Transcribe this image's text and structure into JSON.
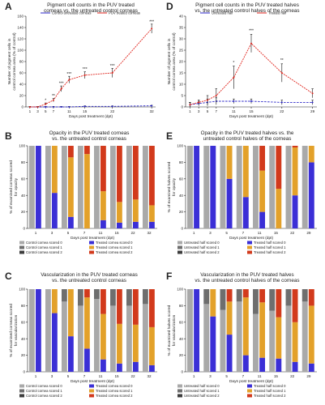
{
  "colors": {
    "red": "#e0261e",
    "blue": "#2b27c8",
    "g0": "#a9a9a9",
    "g1": "#6e6e6e",
    "g2": "#3c3c3c",
    "t0": "#3b2fd6",
    "t1": "#e3a12a",
    "t2": "#d23a1c"
  },
  "chart_data": [
    {
      "id": "A",
      "label": "A",
      "type": "line",
      "title": [
        "Pigment cell counts in the PUV treated",
        "corneas vs. the untreated control corneas"
      ],
      "xlabel": "Days post treatment (dpt)",
      "ylabel": [
        "Number of pigment cells in",
        "control cornea area (% of control)"
      ],
      "x": [
        1,
        3,
        5,
        7,
        9,
        11,
        15,
        22,
        32
      ],
      "xticks": [
        "1",
        "3",
        "5",
        "7",
        "11",
        "15",
        "22",
        "32"
      ],
      "xtick_values": [
        1,
        3,
        5,
        7,
        11,
        15,
        22,
        32
      ],
      "xlim": [
        0,
        33
      ],
      "ylim": [
        0,
        160
      ],
      "yticks": [
        0,
        20,
        40,
        60,
        80,
        100,
        120,
        140,
        160
      ],
      "legend": "top",
      "series": [
        {
          "name": "Control untreated corneas",
          "color": "blue",
          "values": [
            0,
            0,
            0,
            0,
            0,
            0,
            1,
            1,
            2
          ],
          "err": [
            1,
            1,
            1,
            1,
            1,
            1,
            1,
            1,
            1
          ]
        },
        {
          "name": "PUV treated corneas",
          "color": "red",
          "values": [
            0,
            0,
            5,
            12,
            32,
            48,
            56,
            60,
            138
          ],
          "err": [
            1,
            1,
            2,
            3,
            5,
            6,
            6,
            8,
            8
          ]
        }
      ],
      "annotations": [
        {
          "x": 5,
          "y": 9,
          "text": "*"
        },
        {
          "x": 7,
          "y": 17,
          "text": "**"
        },
        {
          "x": 9,
          "y": 39,
          "text": "***"
        },
        {
          "x": 11,
          "y": 56,
          "text": "***"
        },
        {
          "x": 15,
          "y": 64,
          "text": "***"
        },
        {
          "x": 22,
          "y": 70,
          "text": "***"
        },
        {
          "x": 32,
          "y": 148,
          "text": "***"
        }
      ]
    },
    {
      "id": "D",
      "label": "D",
      "type": "line",
      "title": [
        "Pigment cell counts in the PUV treated halves",
        "vs. the untreated control halves of the corneas"
      ],
      "xlabel": "Days post treatment (dpt)",
      "ylabel": [
        "Number of pigment cells in",
        "control cornea area (% of control)"
      ],
      "x": [
        1,
        3,
        5,
        7,
        11,
        15,
        22,
        29
      ],
      "xticks": [
        "1",
        "3",
        "5",
        "7",
        "11",
        "15",
        "22",
        "29"
      ],
      "xtick_values": [
        1,
        3,
        5,
        7,
        11,
        15,
        22,
        29
      ],
      "xlim": [
        0,
        30
      ],
      "ylim": [
        0,
        40
      ],
      "yticks": [
        0,
        5,
        10,
        15,
        20,
        25,
        30,
        35,
        40
      ],
      "legend": "top",
      "series": [
        {
          "name": "Untreated half",
          "color": "blue",
          "values": [
            1,
            1.5,
            2,
            2.5,
            2.5,
            2.5,
            2,
            2
          ],
          "err": [
            1,
            1,
            1.5,
            1.5,
            1,
            1,
            1,
            1
          ]
        },
        {
          "name": "Treated half",
          "color": "red",
          "values": [
            1,
            2,
            3,
            5,
            13,
            28,
            15,
            6
          ],
          "err": [
            1,
            1,
            2,
            3,
            5,
            4,
            4,
            2
          ]
        }
      ],
      "annotations": [
        {
          "x": 11,
          "y": 19,
          "text": "*"
        },
        {
          "x": 15,
          "y": 33,
          "text": "***"
        },
        {
          "x": 22,
          "y": 20,
          "text": "**"
        }
      ]
    },
    {
      "id": "B",
      "label": "B",
      "type": "bar",
      "stacked": true,
      "title": [
        "Opacity in the PUV treated corneas",
        "vs. the untreated control corneas"
      ],
      "xlabel": "Days post treatment (dpt)",
      "ylabel": [
        "% of examined corneas scored",
        "for opacity"
      ],
      "categories": [
        "1",
        "3",
        "5",
        "7",
        "11",
        "15",
        "22",
        "32"
      ],
      "ylim": [
        0,
        100
      ],
      "yticks": [
        0,
        20,
        40,
        60,
        80,
        100
      ],
      "legend": "bottom",
      "series": [
        {
          "name": "Control cornea scored 0",
          "color": "g0",
          "group": "control",
          "values": [
            100,
            100,
            100,
            100,
            100,
            100,
            100,
            100
          ]
        },
        {
          "name": "Control cornea scored 1",
          "color": "g1",
          "group": "control",
          "values": [
            0,
            0,
            0,
            0,
            0,
            0,
            0,
            0
          ]
        },
        {
          "name": "Control cornea scored 2",
          "color": "g2",
          "group": "control",
          "values": [
            0,
            0,
            0,
            0,
            0,
            0,
            0,
            0
          ]
        },
        {
          "name": "Treated cornea scored 0",
          "color": "t0",
          "group": "treated",
          "values": [
            100,
            43,
            14,
            0,
            10,
            7,
            8,
            8
          ]
        },
        {
          "name": "Treated cornea scored 1",
          "color": "t1",
          "group": "treated",
          "values": [
            0,
            57,
            72,
            90,
            35,
            25,
            27,
            20
          ]
        },
        {
          "name": "Treated cornea scored 2",
          "color": "t2",
          "group": "treated",
          "values": [
            0,
            0,
            14,
            10,
            55,
            68,
            65,
            72
          ]
        }
      ]
    },
    {
      "id": "E",
      "label": "E",
      "type": "bar",
      "stacked": true,
      "title": [
        "Opacity in the PUV treated halves vs. the",
        "untreated control halves of the corneas"
      ],
      "xlabel": "Days post treatment (dpt)",
      "ylabel": [
        "% of examined halves scored",
        "for opacity"
      ],
      "categories": [
        "1",
        "3",
        "5",
        "7",
        "11",
        "15",
        "22",
        "29"
      ],
      "ylim": [
        0,
        100
      ],
      "yticks": [
        0,
        20,
        40,
        60,
        80,
        100
      ],
      "legend": "bottom",
      "series": [
        {
          "name": "Untreated half scored 0",
          "color": "g0",
          "group": "control",
          "values": [
            100,
            100,
            100,
            100,
            100,
            100,
            100,
            100
          ]
        },
        {
          "name": "Untreated half scored 1",
          "color": "g1",
          "group": "control",
          "values": [
            0,
            0,
            0,
            0,
            0,
            0,
            0,
            0
          ]
        },
        {
          "name": "Untreated half scored 2",
          "color": "g2",
          "group": "control",
          "values": [
            0,
            0,
            0,
            0,
            0,
            0,
            0,
            0
          ]
        },
        {
          "name": "Treated half scored 0",
          "color": "t0",
          "group": "treated",
          "values": [
            100,
            100,
            60,
            38,
            20,
            0,
            40,
            80
          ]
        },
        {
          "name": "Treated half scored 1",
          "color": "t1",
          "group": "treated",
          "values": [
            0,
            0,
            40,
            62,
            50,
            48,
            58,
            20
          ]
        },
        {
          "name": "Treated half scored 2",
          "color": "t2",
          "group": "treated",
          "values": [
            0,
            0,
            0,
            0,
            30,
            52,
            2,
            0
          ]
        }
      ]
    },
    {
      "id": "C",
      "label": "C",
      "type": "bar",
      "stacked": true,
      "title": [
        "Vascularization in the PUV treated corneas",
        "vs. the untreated control corneas"
      ],
      "xlabel": "Days post treatment (dpt)",
      "ylabel": [
        "% of examined corneas scored",
        "for vascularization"
      ],
      "categories": [
        "1",
        "3",
        "5",
        "7",
        "11",
        "15",
        "22",
        "32"
      ],
      "ylim": [
        0,
        100
      ],
      "yticks": [
        0,
        20,
        40,
        60,
        80,
        100
      ],
      "legend": "bottom",
      "series": [
        {
          "name": "Control cornea scored 0",
          "color": "g0",
          "group": "control",
          "values": [
            100,
            100,
            85,
            80,
            88,
            80,
            80,
            82
          ]
        },
        {
          "name": "Control cornea scored 1",
          "color": "g1",
          "group": "control",
          "values": [
            0,
            0,
            15,
            20,
            12,
            20,
            20,
            18
          ]
        },
        {
          "name": "Control cornea scored 2",
          "color": "g2",
          "group": "control",
          "values": [
            0,
            0,
            0,
            0,
            0,
            0,
            0,
            0
          ]
        },
        {
          "name": "Treated cornea scored 0",
          "color": "t0",
          "group": "treated",
          "values": [
            100,
            71,
            43,
            28,
            15,
            10,
            12,
            8
          ]
        },
        {
          "name": "Treated cornea scored 1",
          "color": "t1",
          "group": "treated",
          "values": [
            0,
            29,
            57,
            62,
            55,
            48,
            45,
            46
          ]
        },
        {
          "name": "Treated cornea scored 2",
          "color": "t2",
          "group": "treated",
          "values": [
            0,
            0,
            0,
            10,
            30,
            42,
            43,
            46
          ]
        }
      ]
    },
    {
      "id": "F",
      "label": "F",
      "type": "bar",
      "stacked": true,
      "title": [
        "Vascularization in the PUV treated halves",
        "vs. the untreated control halves of the corneas"
      ],
      "xlabel": "Days post treatment (dpt)",
      "ylabel": [
        "% of examined halves scored",
        "for vascularization"
      ],
      "categories": [
        "1",
        "3",
        "5",
        "7",
        "11",
        "15",
        "22",
        "29"
      ],
      "ylim": [
        0,
        100
      ],
      "yticks": [
        0,
        20,
        40,
        60,
        80,
        100
      ],
      "legend": "bottom",
      "series": [
        {
          "name": "Untreated half scored 0",
          "color": "g0",
          "group": "control",
          "values": [
            100,
            82,
            75,
            85,
            70,
            74,
            80,
            85
          ]
        },
        {
          "name": "Untreated half scored 1",
          "color": "g1",
          "group": "control",
          "values": [
            0,
            18,
            25,
            15,
            30,
            26,
            20,
            15
          ]
        },
        {
          "name": "Untreated half scored 2",
          "color": "g2",
          "group": "control",
          "values": [
            0,
            0,
            0,
            0,
            0,
            0,
            0,
            0
          ]
        },
        {
          "name": "Treated half scored 0",
          "color": "t0",
          "group": "treated",
          "values": [
            100,
            67,
            45,
            20,
            17,
            16,
            12,
            10
          ]
        },
        {
          "name": "Treated half scored 1",
          "color": "t1",
          "group": "treated",
          "values": [
            0,
            33,
            40,
            70,
            67,
            50,
            48,
            70
          ]
        },
        {
          "name": "Treated half scored 2",
          "color": "t2",
          "group": "treated",
          "values": [
            0,
            0,
            15,
            10,
            16,
            34,
            40,
            20
          ]
        }
      ]
    }
  ]
}
